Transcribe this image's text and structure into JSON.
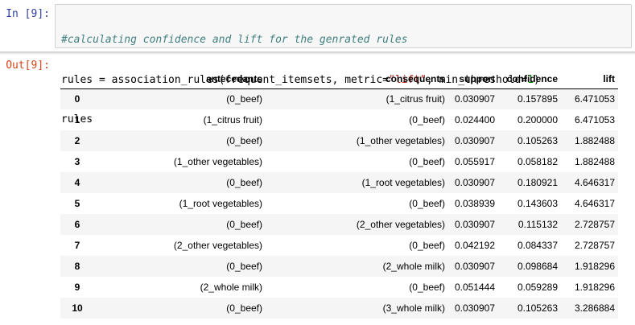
{
  "input_cell": {
    "prompt": "In [9]:",
    "comment": "#calculating confidence and lift for the genrated rules",
    "line2_prefix": "rules = association_rules(frequent_itemsets, metric=",
    "line2_string": "\"lift\"",
    "line2_middle": ", min_threshold=",
    "line2_number": "1",
    "line2_suffix": ")",
    "line3": "rules"
  },
  "output_cell": {
    "prompt": "Out[9]:",
    "columns": [
      "antecedants",
      "consequents",
      "support",
      "confidence",
      "lift"
    ],
    "rows": [
      {
        "index": "0",
        "antecedants": "(0_beef)",
        "consequents": "(1_citrus fruit)",
        "support": "0.030907",
        "confidence": "0.157895",
        "lift": "6.471053"
      },
      {
        "index": "1",
        "antecedants": "(1_citrus fruit)",
        "consequents": "(0_beef)",
        "support": "0.024400",
        "confidence": "0.200000",
        "lift": "6.471053"
      },
      {
        "index": "2",
        "antecedants": "(0_beef)",
        "consequents": "(1_other vegetables)",
        "support": "0.030907",
        "confidence": "0.105263",
        "lift": "1.882488"
      },
      {
        "index": "3",
        "antecedants": "(1_other vegetables)",
        "consequents": "(0_beef)",
        "support": "0.055917",
        "confidence": "0.058182",
        "lift": "1.882488"
      },
      {
        "index": "4",
        "antecedants": "(0_beef)",
        "consequents": "(1_root vegetables)",
        "support": "0.030907",
        "confidence": "0.180921",
        "lift": "4.646317"
      },
      {
        "index": "5",
        "antecedants": "(1_root vegetables)",
        "consequents": "(0_beef)",
        "support": "0.038939",
        "confidence": "0.143603",
        "lift": "4.646317"
      },
      {
        "index": "6",
        "antecedants": "(0_beef)",
        "consequents": "(2_other vegetables)",
        "support": "0.030907",
        "confidence": "0.115132",
        "lift": "2.728757"
      },
      {
        "index": "7",
        "antecedants": "(2_other vegetables)",
        "consequents": "(0_beef)",
        "support": "0.042192",
        "confidence": "0.084337",
        "lift": "2.728757"
      },
      {
        "index": "8",
        "antecedants": "(0_beef)",
        "consequents": "(2_whole milk)",
        "support": "0.030907",
        "confidence": "0.098684",
        "lift": "1.918296"
      },
      {
        "index": "9",
        "antecedants": "(2_whole milk)",
        "consequents": "(0_beef)",
        "support": "0.051444",
        "confidence": "0.059289",
        "lift": "1.918296"
      },
      {
        "index": "10",
        "antecedants": "(0_beef)",
        "consequents": "(3_whole milk)",
        "support": "0.030907",
        "confidence": "0.105263",
        "lift": "3.286884"
      }
    ]
  },
  "colors": {
    "in_prompt": "#303f9f",
    "out_prompt": "#d84315",
    "comment": "#408080",
    "string": "#ba2121",
    "number": "#008000",
    "code_background": "#f7f7f7",
    "striped_row": "#f5f5f5"
  }
}
